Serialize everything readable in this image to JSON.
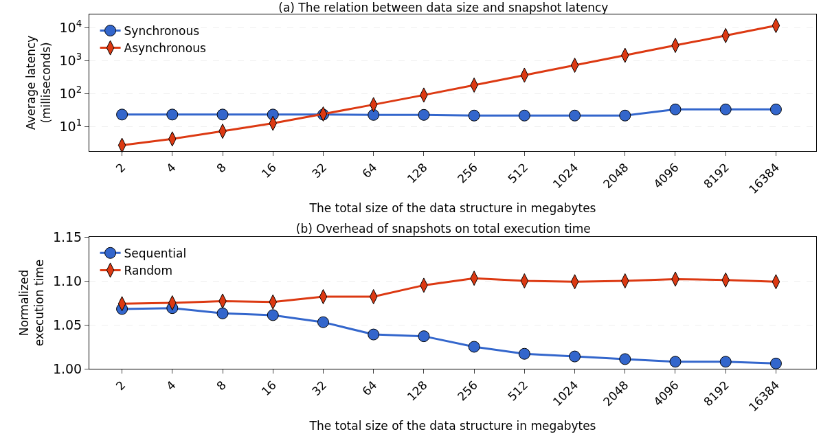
{
  "chart_data": [
    {
      "type": "line",
      "title": "(a) The relation between data size and snapshot latency",
      "xlabel": "The total size of the data structure in megabytes",
      "ylabel": "Average latency\n(milliseconds)",
      "categories": [
        "2",
        "4",
        "8",
        "16",
        "32",
        "64",
        "128",
        "256",
        "512",
        "1024",
        "2048",
        "4096",
        "8192",
        "16384"
      ],
      "series": [
        {
          "name": "Synchronous",
          "color": "#3366cc",
          "marker": "circle",
          "values": [
            23,
            23,
            23,
            23,
            23,
            22.5,
            22.5,
            21.5,
            21.5,
            21.5,
            21.5,
            33,
            33,
            33
          ]
        },
        {
          "name": "Asynchronous",
          "color": "#dc3912",
          "marker": "diamond",
          "values": [
            2.7,
            4.2,
            7.2,
            12.5,
            24,
            46,
            90,
            180,
            360,
            720,
            1440,
            2880,
            5700,
            11500
          ]
        }
      ],
      "log": "y",
      "ylim": [
        1.8,
        25000
      ],
      "yticks": [
        {
          "value": 10,
          "label": "10$^{1}$"
        },
        {
          "value": 100,
          "label": "10$^{2}$"
        },
        {
          "value": 1000,
          "label": "10$^{3}$"
        },
        {
          "value": 10000,
          "label": "10$^{4}$"
        }
      ],
      "grid": "y",
      "legend": "top left",
      "line_style": "solid"
    },
    {
      "type": "line",
      "title": "(b) Overhead of snapshots on total execution time",
      "xlabel": "The total size of the data structure in megabytes",
      "ylabel": "Normalized\nexecution time",
      "categories": [
        "2",
        "4",
        "8",
        "16",
        "32",
        "64",
        "128",
        "256",
        "512",
        "1024",
        "2048",
        "4096",
        "8192",
        "16384"
      ],
      "series": [
        {
          "name": "Sequential",
          "color": "#3366cc",
          "marker": "circle",
          "values": [
            1.068,
            1.069,
            1.063,
            1.061,
            1.053,
            1.039,
            1.037,
            1.025,
            1.017,
            1.014,
            1.011,
            1.008,
            1.008,
            1.006
          ]
        },
        {
          "name": "Random",
          "color": "#dc3912",
          "marker": "diamond",
          "values": [
            1.074,
            1.075,
            1.077,
            1.076,
            1.082,
            1.082,
            1.095,
            1.103,
            1.1,
            1.099,
            1.1,
            1.102,
            1.101,
            1.099
          ]
        }
      ],
      "ylim": [
        1.0,
        1.15
      ],
      "yticks": [
        {
          "value": 1.0,
          "label": "1.00"
        },
        {
          "value": 1.05,
          "label": "1.05"
        },
        {
          "value": 1.1,
          "label": "1.10"
        },
        {
          "value": 1.15,
          "label": "1.15"
        }
      ],
      "grid": "y",
      "legend": "top left",
      "line_style": "solid"
    }
  ]
}
